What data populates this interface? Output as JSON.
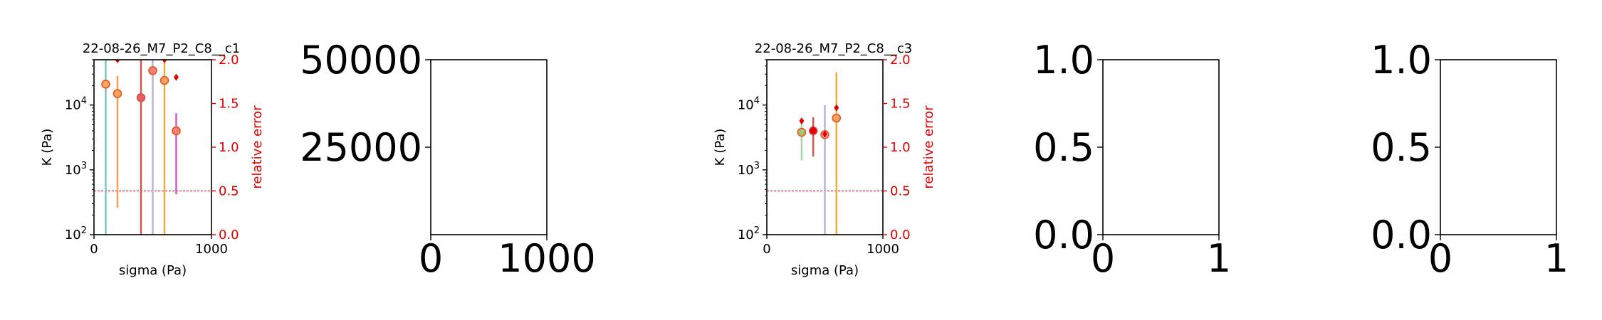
{
  "chart_data": [
    {
      "type": "scatter",
      "title": "22-08-26_M7_P2_C8__c1",
      "xlabel": "sigma (Pa)",
      "ylabel": "K (Pa)",
      "y2label": "relative error",
      "xlim": [
        0,
        1000
      ],
      "ylim": [
        100,
        50000
      ],
      "yscale": "log",
      "y2lim": [
        0,
        2.0
      ],
      "x_ticks": [
        "0",
        "1000"
      ],
      "y_ticks": [
        "10^2",
        "10^3",
        "10^4"
      ],
      "y2_ticks": [
        "0.0",
        "0.5",
        "1.0",
        "1.5",
        "2.0"
      ],
      "threshold": 0.5,
      "points": [
        {
          "x": 100,
          "k": 21000,
          "k_low": 100,
          "k_high": 50000,
          "rel_err": 2.3,
          "color": "#7fc6c9",
          "edge": "#e8541c",
          "face": "#f4a460"
        },
        {
          "x": 200,
          "k": 15000,
          "k_low": 260,
          "k_high": 28000,
          "rel_err": 2.0,
          "color": "#f5a05a",
          "edge": "#e8541c",
          "face": "#f4a460"
        },
        {
          "x": 400,
          "k": 13000,
          "k_low": 100,
          "k_high": 50000,
          "rel_err": 2.2,
          "color": "#d9534f",
          "edge": "#d9534f",
          "face": "#e06060"
        },
        {
          "x": 500,
          "k": 34000,
          "k_low": 100,
          "k_high": 50000,
          "rel_err": 2.2,
          "color": "#b8b3dc",
          "edge": "#e8541c",
          "face": "#f08080"
        },
        {
          "x": 600,
          "k": 24000,
          "k_low": 100,
          "k_high": 50000,
          "rel_err": 2.0,
          "color": "#e8b040",
          "edge": "#e8541c",
          "face": "#f4a460"
        },
        {
          "x": 700,
          "k": 4000,
          "k_low": 420,
          "k_high": 7500,
          "rel_err": 1.8,
          "color": "#d55fc0",
          "edge": "#e8541c",
          "face": "#f08080"
        }
      ],
      "marker_color": "#e00000",
      "threshold_color": "#e00000"
    },
    {
      "type": "empty",
      "ylim": [
        0,
        50000
      ],
      "xlim": [
        0,
        1000
      ],
      "x_ticks": [
        "0",
        "1000"
      ],
      "y_ticks": [
        "25000",
        "50000"
      ]
    },
    {
      "type": "scatter",
      "title": "22-08-26_M7_P2_C8__c3",
      "xlabel": "sigma (Pa)",
      "ylabel": "K (Pa)",
      "y2label": "relative error",
      "xlim": [
        0,
        1000
      ],
      "ylim": [
        100,
        50000
      ],
      "yscale": "log",
      "y2lim": [
        0,
        2.0
      ],
      "x_ticks": [
        "0",
        "1000"
      ],
      "y_ticks": [
        "10^2",
        "10^3",
        "10^4"
      ],
      "y2_ticks": [
        "0.0",
        "0.5",
        "1.0",
        "1.5",
        "2.0"
      ],
      "threshold": 0.5,
      "points": [
        {
          "x": 300,
          "k": 3800,
          "k_low": 1400,
          "k_high": 5500,
          "rel_err": 1.3,
          "color": "#a5d6a7",
          "edge": "#e8541c",
          "face": "#a5c878"
        },
        {
          "x": 400,
          "k": 4000,
          "k_low": 1600,
          "k_high": 6500,
          "rel_err": 1.2,
          "color": "#d9534f",
          "edge": "#d9534f",
          "face": "#e00000"
        },
        {
          "x": 500,
          "k": 3500,
          "k_low": 100,
          "k_high": 10000,
          "rel_err": 1.15,
          "color": "#b8b3dc",
          "edge": "#e8541c",
          "face": "#f0a0a0"
        },
        {
          "x": 600,
          "k": 6300,
          "k_low": 100,
          "k_high": 32000,
          "rel_err": 1.45,
          "color": "#e8b040",
          "edge": "#e8541c",
          "face": "#f4a460"
        }
      ],
      "marker_color": "#e00000",
      "threshold_color": "#e00000"
    },
    {
      "type": "empty",
      "xlim": [
        0,
        1
      ],
      "ylim": [
        0,
        1
      ],
      "x_ticks": [
        "0",
        "1"
      ],
      "y_ticks": [
        "0.0",
        "0.5",
        "1.0"
      ]
    },
    {
      "type": "empty",
      "xlim": [
        0,
        1
      ],
      "ylim": [
        0,
        1
      ],
      "x_ticks": [
        "0",
        "1"
      ],
      "y_ticks": [
        "0.0",
        "0.5",
        "1.0"
      ]
    }
  ]
}
